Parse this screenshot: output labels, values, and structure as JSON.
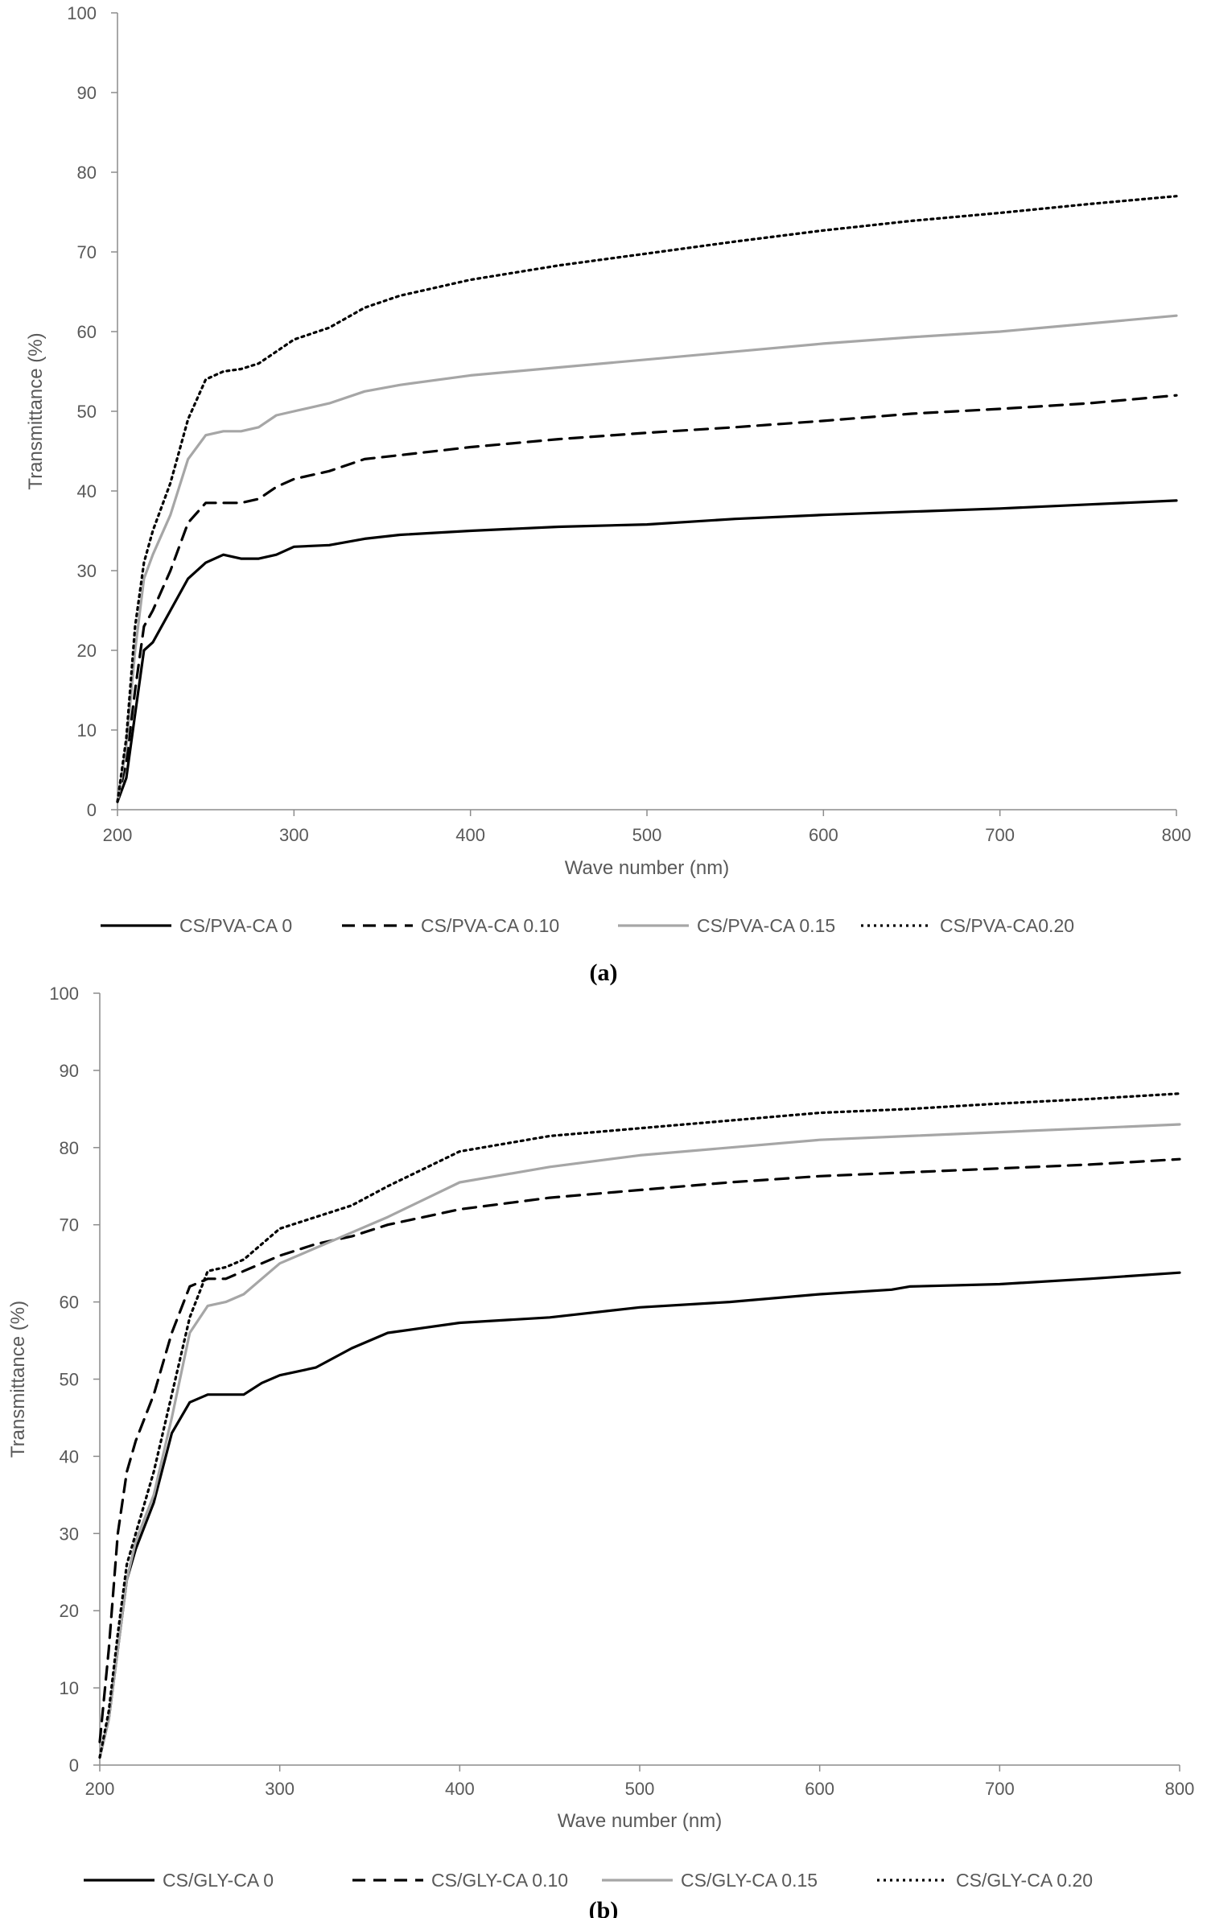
{
  "chart_data": [
    {
      "type": "line",
      "panel_label": "(a)",
      "xlabel": "Wave number (nm)",
      "ylabel": "Transmittance (%)",
      "xlim": [
        200,
        800
      ],
      "ylim": [
        0,
        100
      ],
      "xticks": [
        200,
        300,
        400,
        500,
        600,
        700,
        800
      ],
      "yticks": [
        0,
        10,
        20,
        30,
        40,
        50,
        60,
        70,
        80,
        90,
        100
      ],
      "grid": false,
      "legend_position": "bottom",
      "series": [
        {
          "name": "CS/PVA-CA 0",
          "color": "#000000",
          "style": "solid",
          "x": [
            200,
            205,
            210,
            215,
            220,
            230,
            240,
            250,
            260,
            270,
            280,
            290,
            300,
            320,
            340,
            360,
            400,
            450,
            500,
            550,
            600,
            650,
            700,
            750,
            800
          ],
          "y": [
            1,
            4,
            12,
            20,
            21,
            25,
            29,
            31,
            32,
            31.5,
            31.5,
            32,
            33,
            33.2,
            34,
            34.5,
            35,
            35.5,
            35.8,
            36.5,
            37,
            37.4,
            37.8,
            38.3,
            38.8
          ]
        },
        {
          "name": "CS/PVA-CA 0.10",
          "color": "#000000",
          "style": "dashed",
          "x": [
            200,
            205,
            210,
            215,
            220,
            230,
            240,
            250,
            260,
            270,
            280,
            290,
            300,
            320,
            340,
            360,
            400,
            450,
            500,
            550,
            600,
            650,
            700,
            750,
            800
          ],
          "y": [
            1,
            6,
            15,
            23,
            25,
            30,
            36,
            38.5,
            38.5,
            38.5,
            39,
            40.5,
            41.5,
            42.5,
            44,
            44.5,
            45.5,
            46.5,
            47.3,
            48,
            48.8,
            49.7,
            50.3,
            51,
            52
          ]
        },
        {
          "name": "CS/PVA-CA 0.15",
          "color": "#a6a6a6",
          "style": "solid",
          "x": [
            200,
            205,
            210,
            215,
            220,
            230,
            240,
            250,
            260,
            270,
            280,
            290,
            300,
            320,
            340,
            360,
            400,
            450,
            500,
            550,
            600,
            650,
            700,
            750,
            800
          ],
          "y": [
            1,
            8,
            20,
            29,
            32,
            37,
            44,
            47,
            47.5,
            47.5,
            48,
            49.5,
            50,
            51,
            52.5,
            53.3,
            54.5,
            55.5,
            56.5,
            57.5,
            58.5,
            59.3,
            60,
            61,
            62
          ]
        },
        {
          "name": "CS/PVA-CA0.20",
          "color": "#000000",
          "style": "dotted",
          "x": [
            200,
            205,
            210,
            215,
            220,
            230,
            240,
            250,
            260,
            270,
            280,
            290,
            300,
            320,
            340,
            360,
            400,
            450,
            500,
            550,
            600,
            650,
            700,
            750,
            800
          ],
          "y": [
            1,
            9,
            23,
            31,
            35,
            41,
            49,
            54,
            55,
            55.3,
            56,
            57.5,
            59,
            60.5,
            63,
            64.5,
            66.5,
            68.3,
            69.8,
            71.3,
            72.7,
            73.9,
            74.9,
            76,
            77
          ]
        }
      ]
    },
    {
      "type": "line",
      "panel_label": "(b)",
      "xlabel": "Wave number (nm)",
      "ylabel": "Transmittance (%)",
      "xlim": [
        200,
        800
      ],
      "ylim": [
        0,
        100
      ],
      "xticks": [
        200,
        300,
        400,
        500,
        600,
        700,
        800
      ],
      "yticks": [
        0,
        10,
        20,
        30,
        40,
        50,
        60,
        70,
        80,
        90,
        100
      ],
      "grid": false,
      "legend_position": "bottom",
      "series": [
        {
          "name": "CS/GLY-CA 0",
          "color": "#000000",
          "style": "solid",
          "x": [
            200,
            205,
            210,
            215,
            220,
            230,
            240,
            250,
            260,
            270,
            280,
            290,
            300,
            320,
            340,
            360,
            400,
            450,
            500,
            550,
            600,
            640,
            650,
            700,
            750,
            800
          ],
          "y": [
            1,
            6,
            15,
            24,
            28,
            34,
            43,
            47,
            48,
            48,
            48,
            49.5,
            50.5,
            51.5,
            54,
            56,
            57.3,
            58,
            59.3,
            60,
            61,
            61.6,
            62,
            62.3,
            63,
            63.8
          ]
        },
        {
          "name": "CS/GLY-CA 0.10",
          "color": "#000000",
          "style": "dashed",
          "x": [
            200,
            205,
            210,
            215,
            220,
            230,
            240,
            250,
            260,
            270,
            280,
            290,
            300,
            320,
            340,
            360,
            400,
            450,
            500,
            550,
            600,
            650,
            700,
            750,
            800
          ],
          "y": [
            3,
            15,
            30,
            38,
            42,
            48,
            56,
            62,
            63,
            63,
            64,
            65,
            66,
            67.5,
            68.5,
            70,
            72,
            73.5,
            74.5,
            75.5,
            76.3,
            76.8,
            77.3,
            77.8,
            78.5
          ]
        },
        {
          "name": "CS/GLY-CA 0.15",
          "color": "#a6a6a6",
          "style": "solid",
          "x": [
            200,
            205,
            210,
            215,
            220,
            230,
            240,
            250,
            260,
            270,
            280,
            290,
            300,
            320,
            340,
            360,
            400,
            450,
            500,
            550,
            600,
            650,
            700,
            750,
            800
          ],
          "y": [
            1,
            6,
            15,
            24,
            29,
            35,
            45,
            56,
            59.5,
            60,
            61,
            63,
            65,
            67,
            69,
            71,
            75.5,
            77.5,
            79,
            80,
            81,
            81.5,
            82,
            82.5,
            83
          ]
        },
        {
          "name": "CS/GLY-CA 0.20",
          "color": "#000000",
          "style": "dotted",
          "x": [
            200,
            205,
            210,
            215,
            220,
            230,
            240,
            250,
            260,
            270,
            280,
            290,
            300,
            320,
            340,
            360,
            400,
            450,
            500,
            550,
            600,
            650,
            700,
            750,
            800
          ],
          "y": [
            1,
            7,
            17,
            26,
            30,
            38,
            48,
            58,
            64,
            64.5,
            65.5,
            67.5,
            69.5,
            71,
            72.5,
            75,
            79.5,
            81.5,
            82.5,
            83.5,
            84.5,
            85,
            85.7,
            86.3,
            87
          ]
        }
      ]
    }
  ]
}
